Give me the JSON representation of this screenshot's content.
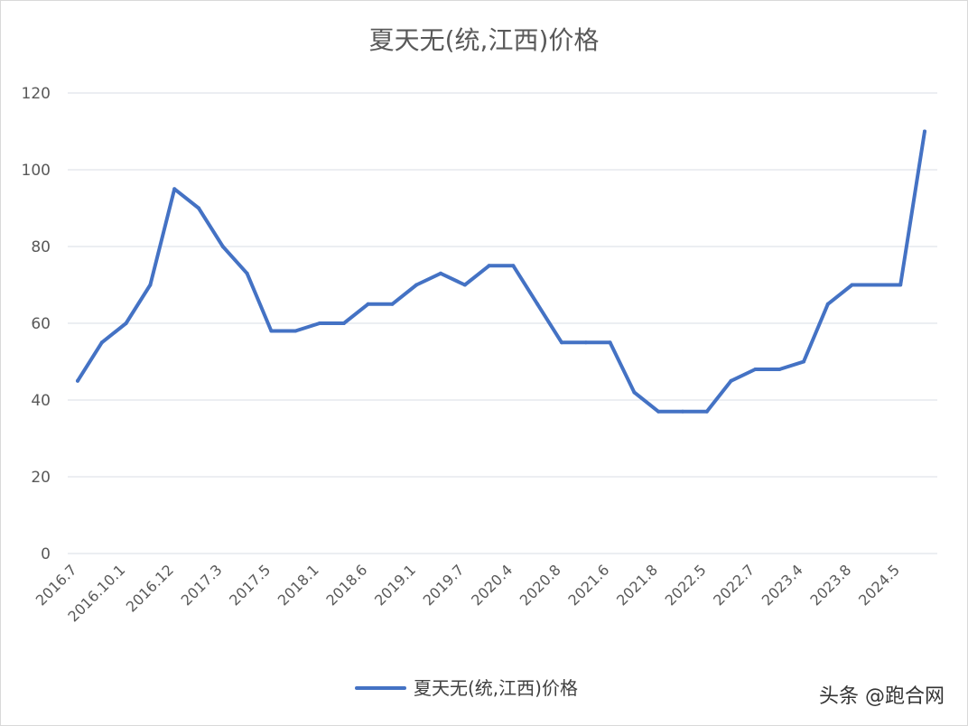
{
  "chart_data": {
    "type": "line",
    "title": "夏天无(统,江西)价格",
    "xlabel": "",
    "ylabel": "",
    "ylim": [
      0,
      120
    ],
    "yticks": [
      0,
      20,
      40,
      60,
      80,
      100,
      120
    ],
    "grid": true,
    "legend_position": "bottom",
    "x_tick_labels": [
      "2016.7",
      "2016.10.1",
      "2016.12",
      "2017.3",
      "2017.5",
      "2018.1",
      "2018.6",
      "2019.1",
      "2019.7",
      "2020.4",
      "2020.8",
      "2021.6",
      "2021.8",
      "2022.5",
      "2022.7",
      "2023.4",
      "2023.8",
      "2024.5"
    ],
    "series": [
      {
        "name": "夏天无(统,江西)价格",
        "color": "#4472c4",
        "values": [
          45,
          55,
          60,
          70,
          95,
          90,
          80,
          73,
          58,
          58,
          60,
          60,
          65,
          65,
          70,
          73,
          70,
          75,
          75,
          65,
          55,
          55,
          55,
          42,
          37,
          37,
          37,
          45,
          48,
          48,
          50,
          65,
          70,
          70,
          70,
          110
        ]
      }
    ]
  },
  "watermark": "头条 @跑合网"
}
